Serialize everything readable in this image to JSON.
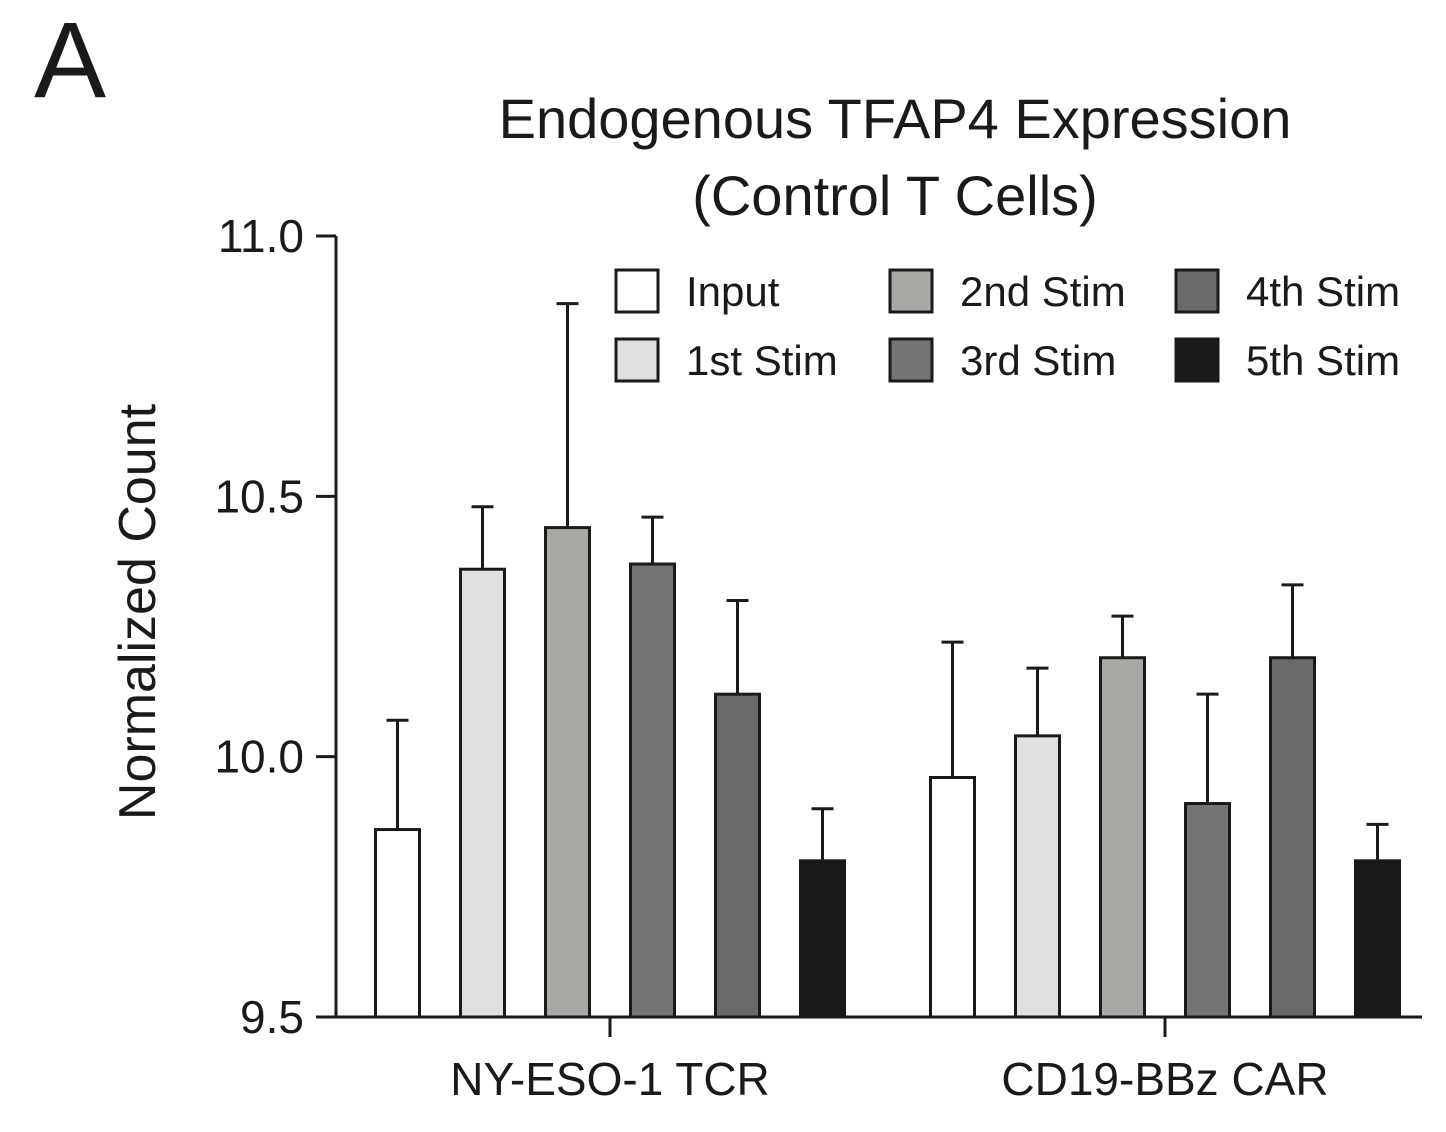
{
  "panel_label": "A",
  "chart_data": {
    "type": "bar",
    "title": "Endogenous TFAP4 Expression",
    "subtitle": "(Control T Cells)",
    "xlabel": "",
    "ylabel": "Normalized Count",
    "ylim": [
      9.5,
      11.0
    ],
    "yticks": [
      "9.5",
      "10.0",
      "10.5",
      "11.0"
    ],
    "grid": false,
    "legend_position": "top-right",
    "categories": [
      "NY-ESO-1 TCR",
      "CD19-BBz CAR"
    ],
    "series": [
      {
        "name": "Input",
        "color": "#ffffff",
        "values": [
          9.86,
          9.96
        ],
        "errors": [
          0.21,
          0.26
        ]
      },
      {
        "name": "1st Stim",
        "color": "#e0e0df",
        "values": [
          10.36,
          10.04
        ],
        "errors": [
          0.12,
          0.13
        ]
      },
      {
        "name": "2nd Stim",
        "color": "#a8a8a4",
        "values": [
          10.44,
          10.19
        ],
        "errors": [
          0.43,
          0.08
        ]
      },
      {
        "name": "3rd Stim",
        "color": "#747473",
        "values": [
          10.37,
          9.91
        ],
        "errors": [
          0.09,
          0.21
        ]
      },
      {
        "name": "4th Stim",
        "color": "#6a6a6a",
        "values": [
          10.12,
          10.19
        ],
        "errors": [
          0.18,
          0.14
        ]
      },
      {
        "name": "5th Stim",
        "color": "#1a1a1a",
        "values": [
          9.8,
          9.8
        ],
        "errors": [
          0.1,
          0.07
        ]
      }
    ]
  }
}
